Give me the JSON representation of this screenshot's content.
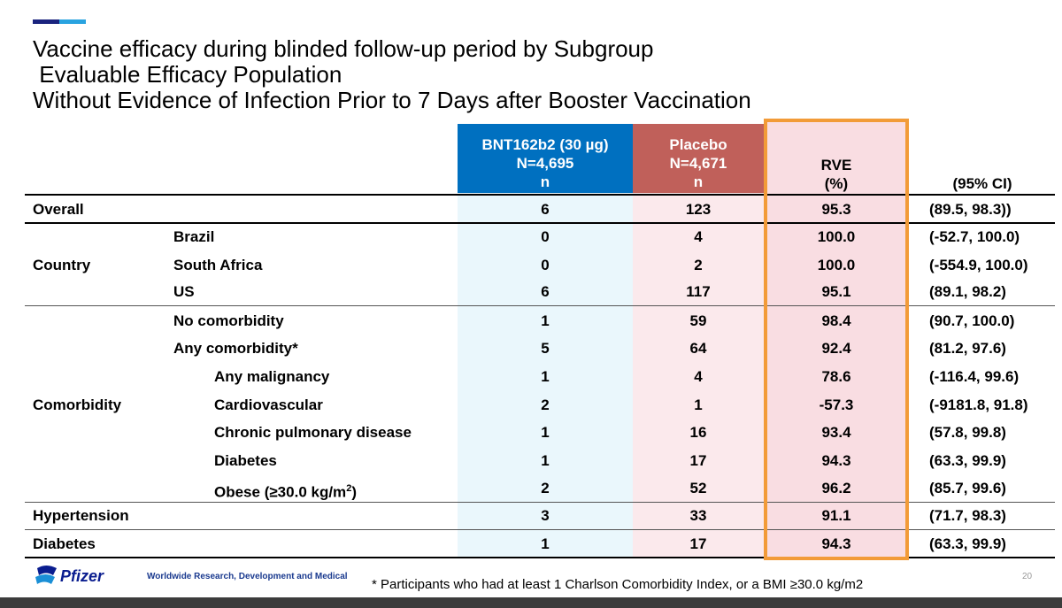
{
  "title": {
    "line1": "Vaccine efficacy during blinded follow-up period by Subgroup",
    "line2": " Evaluable Efficacy Population",
    "line3": "Without Evidence of Infection Prior to 7 Days after Booster Vaccination"
  },
  "colors": {
    "bnt_header": "#0070c0",
    "bnt_column": "#eaf7fc",
    "placebo_header": "#c0605a",
    "placebo_column": "#fbe9ec",
    "rve_column": "#f9dde2",
    "rve_border": "#f29b38"
  },
  "headers": {
    "bnt": {
      "line1": "BNT162b2 (30 µg)",
      "line2": "N=4,695",
      "line3": "n"
    },
    "placebo": {
      "line1": "Placebo",
      "line2": "N=4,671",
      "line3": "n"
    },
    "rve": {
      "line1": "RVE",
      "line2": "(%)"
    },
    "ci": "(95% CI)"
  },
  "groups": {
    "overall": "Overall",
    "country": "Country",
    "comorbidity": "Comorbidity",
    "hypertension": "Hypertension",
    "diabetes": "Diabetes"
  },
  "rows": [
    {
      "label": "",
      "bnt": "6",
      "placebo": "123",
      "rve": "95.3",
      "ci": "(89.5, 98.3))"
    },
    {
      "label": "Brazil",
      "bnt": "0",
      "placebo": "4",
      "rve": "100.0",
      "ci": "(-52.7, 100.0)"
    },
    {
      "label": "South Africa",
      "bnt": "0",
      "placebo": "2",
      "rve": "100.0",
      "ci": "(-554.9, 100.0)"
    },
    {
      "label": "US",
      "bnt": "6",
      "placebo": "117",
      "rve": "95.1",
      "ci": "(89.1, 98.2)"
    },
    {
      "label": "No comorbidity",
      "bnt": "1",
      "placebo": "59",
      "rve": "98.4",
      "ci": "(90.7, 100.0)"
    },
    {
      "label": "Any comorbidity*",
      "bnt": "5",
      "placebo": "64",
      "rve": "92.4",
      "ci": "(81.2, 97.6)"
    },
    {
      "label": "Any malignancy",
      "bnt": "1",
      "placebo": "4",
      "rve": "78.6",
      "ci": "(-116.4, 99.6)"
    },
    {
      "label": "Cardiovascular",
      "bnt": "2",
      "placebo": "1",
      "rve": "-57.3",
      "ci": "(-9181.8, 91.8)"
    },
    {
      "label": "Chronic pulmonary disease",
      "bnt": "1",
      "placebo": "16",
      "rve": "93.4",
      "ci": "(57.8, 99.8)"
    },
    {
      "label": "Diabetes",
      "bnt": "1",
      "placebo": "17",
      "rve": "94.3",
      "ci": "(63.3, 99.9)"
    },
    {
      "label": "Obese (≥30.0 kg/m",
      "label_sup": "2",
      "label_end": ")",
      "bnt": "2",
      "placebo": "52",
      "rve": "96.2",
      "ci": "(85.7, 99.6)"
    },
    {
      "label": "",
      "bnt": "3",
      "placebo": "33",
      "rve": "91.1",
      "ci": "(71.7, 98.3)"
    },
    {
      "label": "",
      "bnt": "1",
      "placebo": "17",
      "rve": "94.3",
      "ci": "(63.3, 99.9)"
    }
  ],
  "footer": {
    "logo_text": "Pfizer",
    "org": "Worldwide Research, Development and Medical",
    "footnote": "* Participants who had at least 1 Charlson Comorbidity Index, or a BMI ≥30.0 kg/m2",
    "page": "20"
  }
}
